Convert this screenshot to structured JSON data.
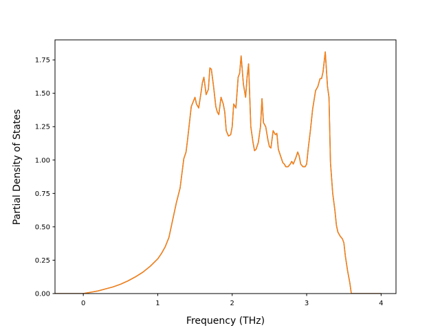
{
  "chart_data": {
    "type": "line",
    "title": "",
    "xlabel": "Frequency (THz)",
    "ylabel": "Partial Density of States",
    "xlim": [
      -0.38,
      4.2
    ],
    "ylim": [
      0.0,
      1.9
    ],
    "xticks": [
      0,
      1,
      2,
      3,
      4
    ],
    "xtick_labels": [
      "0",
      "1",
      "2",
      "3",
      "4"
    ],
    "yticks": [
      0.0,
      0.25,
      0.5,
      0.75,
      1.0,
      1.25,
      1.5,
      1.75
    ],
    "ytick_labels": [
      "0.00",
      "0.25",
      "0.50",
      "0.75",
      "1.00",
      "1.25",
      "1.50",
      "1.75"
    ],
    "grid": false,
    "legend": "none",
    "series": [
      {
        "color": "#1f77b4",
        "x": [
          -0.38,
          0.0,
          0.1,
          0.2,
          0.3,
          0.4,
          0.5,
          0.6,
          0.7,
          0.8,
          0.9,
          1.0,
          1.05,
          1.1,
          1.15,
          1.2,
          1.25,
          1.3,
          1.35,
          1.38,
          1.4,
          1.42,
          1.45,
          1.5,
          1.52,
          1.55,
          1.58,
          1.6,
          1.62,
          1.65,
          1.68,
          1.7,
          1.72,
          1.75,
          1.78,
          1.8,
          1.82,
          1.85,
          1.88,
          1.9,
          1.92,
          1.95,
          1.98,
          2.0,
          2.02,
          2.05,
          2.08,
          2.1,
          2.12,
          2.15,
          2.18,
          2.2,
          2.22,
          2.25,
          2.28,
          2.3,
          2.32,
          2.35,
          2.38,
          2.4,
          2.42,
          2.45,
          2.48,
          2.5,
          2.52,
          2.55,
          2.58,
          2.6,
          2.62,
          2.65,
          2.68,
          2.7,
          2.72,
          2.75,
          2.78,
          2.8,
          2.82,
          2.85,
          2.88,
          2.9,
          2.92,
          2.95,
          2.98,
          3.0,
          3.02,
          3.05,
          3.08,
          3.1,
          3.12,
          3.15,
          3.18,
          3.2,
          3.22,
          3.25,
          3.28,
          3.3,
          3.32,
          3.35,
          3.38,
          3.4,
          3.42,
          3.45,
          3.48,
          3.5,
          3.52,
          3.55,
          3.58,
          3.6,
          3.62,
          3.65,
          3.7,
          3.8,
          4.0
        ],
        "y": [
          0.0,
          0.0,
          0.01,
          0.02,
          0.035,
          0.05,
          0.07,
          0.095,
          0.125,
          0.16,
          0.205,
          0.26,
          0.3,
          0.35,
          0.42,
          0.55,
          0.68,
          0.79,
          1.01,
          1.06,
          1.15,
          1.25,
          1.4,
          1.47,
          1.42,
          1.39,
          1.5,
          1.58,
          1.62,
          1.49,
          1.53,
          1.69,
          1.68,
          1.55,
          1.4,
          1.36,
          1.34,
          1.47,
          1.42,
          1.36,
          1.22,
          1.18,
          1.19,
          1.25,
          1.42,
          1.39,
          1.62,
          1.65,
          1.78,
          1.57,
          1.47,
          1.62,
          1.72,
          1.25,
          1.13,
          1.07,
          1.08,
          1.13,
          1.25,
          1.46,
          1.28,
          1.25,
          1.15,
          1.1,
          1.09,
          1.22,
          1.19,
          1.2,
          1.08,
          1.03,
          0.98,
          0.97,
          0.95,
          0.95,
          0.97,
          0.99,
          0.97,
          1.01,
          1.06,
          1.03,
          0.97,
          0.95,
          0.95,
          0.97,
          1.08,
          1.22,
          1.38,
          1.45,
          1.52,
          1.55,
          1.61,
          1.61,
          1.66,
          1.81,
          1.55,
          1.47,
          0.98,
          0.75,
          0.62,
          0.51,
          0.46,
          0.43,
          0.41,
          0.38,
          0.28,
          0.17,
          0.08,
          0.0,
          0.0,
          0.0,
          0.0,
          0.0,
          0.0
        ]
      },
      {
        "color": "#ff7f0e",
        "x": [
          -0.38,
          0.0,
          0.1,
          0.2,
          0.3,
          0.4,
          0.5,
          0.6,
          0.7,
          0.8,
          0.9,
          1.0,
          1.05,
          1.1,
          1.15,
          1.2,
          1.25,
          1.3,
          1.35,
          1.38,
          1.4,
          1.42,
          1.45,
          1.5,
          1.52,
          1.55,
          1.58,
          1.6,
          1.62,
          1.65,
          1.68,
          1.7,
          1.72,
          1.75,
          1.78,
          1.8,
          1.82,
          1.85,
          1.88,
          1.9,
          1.92,
          1.95,
          1.98,
          2.0,
          2.02,
          2.05,
          2.08,
          2.1,
          2.12,
          2.15,
          2.18,
          2.2,
          2.22,
          2.25,
          2.28,
          2.3,
          2.32,
          2.35,
          2.38,
          2.4,
          2.42,
          2.45,
          2.48,
          2.5,
          2.52,
          2.55,
          2.58,
          2.6,
          2.62,
          2.65,
          2.68,
          2.7,
          2.72,
          2.75,
          2.78,
          2.8,
          2.82,
          2.85,
          2.88,
          2.9,
          2.92,
          2.95,
          2.98,
          3.0,
          3.02,
          3.05,
          3.08,
          3.1,
          3.12,
          3.15,
          3.18,
          3.2,
          3.22,
          3.25,
          3.28,
          3.3,
          3.32,
          3.35,
          3.38,
          3.4,
          3.42,
          3.45,
          3.48,
          3.5,
          3.52,
          3.55,
          3.58,
          3.6,
          3.62,
          3.65,
          3.7,
          3.8,
          4.0
        ],
        "y": [
          0.0,
          0.0,
          0.01,
          0.02,
          0.035,
          0.05,
          0.07,
          0.095,
          0.125,
          0.16,
          0.205,
          0.26,
          0.3,
          0.35,
          0.42,
          0.55,
          0.68,
          0.79,
          1.01,
          1.06,
          1.15,
          1.25,
          1.4,
          1.47,
          1.42,
          1.39,
          1.5,
          1.58,
          1.62,
          1.49,
          1.53,
          1.69,
          1.68,
          1.55,
          1.4,
          1.36,
          1.34,
          1.47,
          1.42,
          1.36,
          1.22,
          1.18,
          1.19,
          1.25,
          1.42,
          1.39,
          1.62,
          1.65,
          1.78,
          1.57,
          1.47,
          1.62,
          1.72,
          1.25,
          1.13,
          1.07,
          1.08,
          1.13,
          1.25,
          1.46,
          1.28,
          1.25,
          1.15,
          1.1,
          1.09,
          1.22,
          1.19,
          1.2,
          1.08,
          1.03,
          0.98,
          0.97,
          0.95,
          0.95,
          0.97,
          0.99,
          0.97,
          1.01,
          1.06,
          1.03,
          0.97,
          0.95,
          0.95,
          0.97,
          1.08,
          1.22,
          1.38,
          1.45,
          1.52,
          1.55,
          1.61,
          1.61,
          1.66,
          1.81,
          1.55,
          1.47,
          0.98,
          0.75,
          0.62,
          0.51,
          0.46,
          0.43,
          0.41,
          0.38,
          0.28,
          0.17,
          0.08,
          0.0,
          0.0,
          0.0,
          0.0,
          0.0,
          0.0
        ]
      }
    ]
  }
}
